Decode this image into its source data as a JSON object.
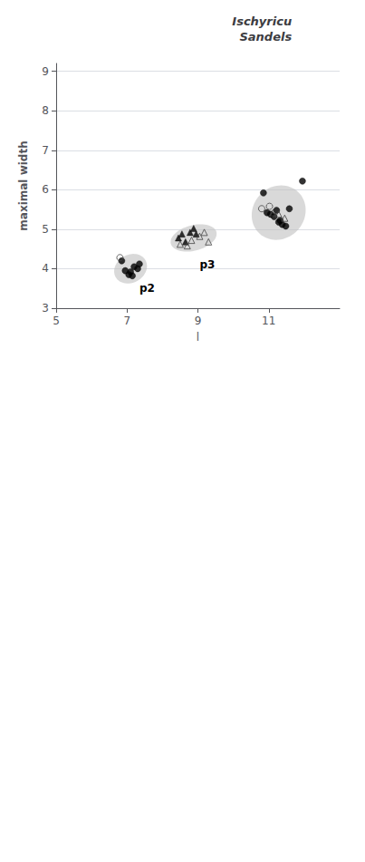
{
  "chart_data": {
    "type": "scatter",
    "title": "Ischyricu\nSandels",
    "xlabel": "l",
    "ylabel": "maximal width",
    "xlim": [
      5,
      13
    ],
    "ylim": [
      3,
      9.2
    ],
    "xticks": [
      5,
      7,
      9,
      11
    ],
    "yticks": [
      3,
      4,
      5,
      6,
      7,
      8,
      9
    ],
    "grid": "y",
    "series": [
      {
        "color": "#000000",
        "marker": "circle",
        "values": [
          [
            6.85,
            4.2
          ],
          [
            6.95,
            3.95
          ],
          [
            7.05,
            3.85
          ],
          [
            7.1,
            3.92
          ],
          [
            7.15,
            3.82
          ],
          [
            7.2,
            4.05
          ],
          [
            7.3,
            4.0
          ],
          [
            7.35,
            4.12
          ]
        ]
      },
      {
        "color": "#444444",
        "marker": "open_circle",
        "values": [
          [
            6.8,
            4.28
          ]
        ]
      },
      {
        "color": "#000000",
        "marker": "triangle",
        "values": [
          [
            8.45,
            4.78
          ],
          [
            8.55,
            4.88
          ],
          [
            8.65,
            4.68
          ],
          [
            8.78,
            4.92
          ],
          [
            8.88,
            5.02
          ],
          [
            8.95,
            4.88
          ]
        ]
      },
      {
        "color": "#444444",
        "marker": "open_triangle",
        "values": [
          [
            8.5,
            4.62
          ],
          [
            8.7,
            4.58
          ],
          [
            8.82,
            4.72
          ],
          [
            9.05,
            4.82
          ],
          [
            9.18,
            4.92
          ],
          [
            9.3,
            4.68
          ]
        ]
      },
      {
        "color": "#000000",
        "marker": "circle",
        "values": [
          [
            10.85,
            5.92
          ],
          [
            10.95,
            5.42
          ],
          [
            11.05,
            5.38
          ],
          [
            11.15,
            5.32
          ],
          [
            11.22,
            5.48
          ],
          [
            11.28,
            5.18
          ],
          [
            11.32,
            5.22
          ],
          [
            11.38,
            5.12
          ],
          [
            11.48,
            5.08
          ],
          [
            11.58,
            5.52
          ],
          [
            11.95,
            6.22
          ]
        ]
      },
      {
        "color": "#444444",
        "marker": "open_circle",
        "values": [
          [
            10.8,
            5.52
          ],
          [
            11.02,
            5.58
          ]
        ]
      },
      {
        "color": "#444444",
        "marker": "open_triangle",
        "values": [
          [
            11.12,
            5.42
          ],
          [
            11.28,
            5.38
          ],
          [
            11.45,
            5.28
          ]
        ]
      }
    ],
    "ellipses": {
      "color": "#c0c0c0",
      "items": [
        {
          "x": 7.1,
          "y": 4.0,
          "width": 0.95,
          "height": 0.72,
          "angle": 20
        },
        {
          "x": 8.88,
          "y": 4.78,
          "width": 1.32,
          "height": 0.65,
          "angle": 12
        },
        {
          "x": 11.28,
          "y": 5.42,
          "width": 1.55,
          "height": 1.35,
          "angle": 22
        }
      ]
    },
    "annotations": [
      {
        "text": "p2",
        "x": 7.35,
        "y": 3.65
      },
      {
        "text": "p3",
        "x": 9.05,
        "y": 4.25
      }
    ]
  }
}
